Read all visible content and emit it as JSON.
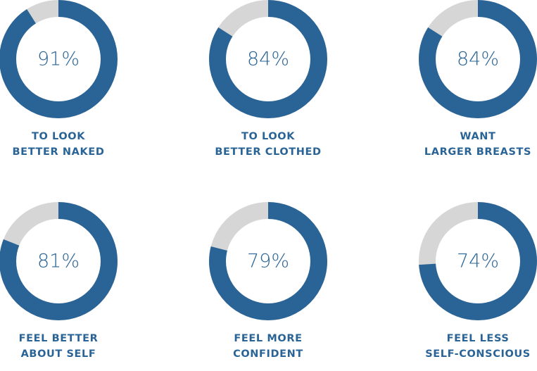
{
  "chart_data": {
    "type": "pie",
    "colors": {
      "filled": "#2a6496",
      "remainder": "#d6d6d6",
      "value_text": "#2a6496",
      "label_text": "#2a6496"
    },
    "items": [
      {
        "value": 91,
        "display": "91%",
        "label_lines": [
          "TO LOOK",
          "BETTER NAKED"
        ]
      },
      {
        "value": 84,
        "display": "84%",
        "label_lines": [
          "TO LOOK",
          "BETTER CLOTHED"
        ]
      },
      {
        "value": 84,
        "display": "84%",
        "label_lines": [
          "WANT",
          "LARGER BREASTS"
        ]
      },
      {
        "value": 81,
        "display": "81%",
        "label_lines": [
          "FEEL BETTER",
          "ABOUT SELF"
        ]
      },
      {
        "value": 79,
        "display": "79%",
        "label_lines": [
          "FEEL MORE",
          "CONFIDENT"
        ]
      },
      {
        "value": 74,
        "display": "74%",
        "label_lines": [
          "FEEL LESS",
          "SELF-CONSCIOUS"
        ]
      }
    ]
  }
}
